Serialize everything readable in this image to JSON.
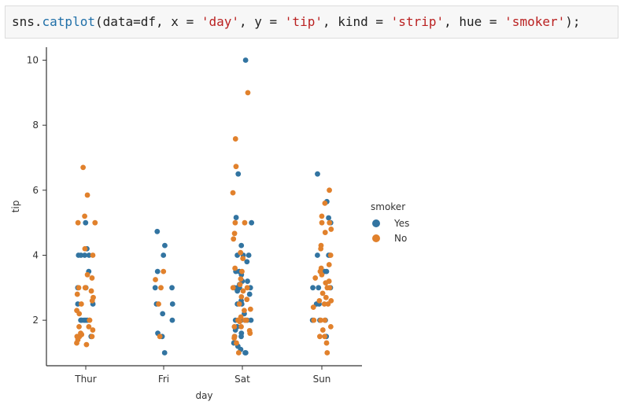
{
  "code_cell": {
    "prefix": "sns.",
    "function": "catplot",
    "open": "(data=df, x = ",
    "x_arg": "'day'",
    "sep1": ", y = ",
    "y_arg": "'tip'",
    "sep2": ", kind = ",
    "kind_arg": "'strip'",
    "sep3": ", hue = ",
    "hue_arg": "'smoker'",
    "close": ");"
  },
  "colors": {
    "Yes": "#3274a1",
    "No": "#e1812c",
    "axis": "#333333",
    "text": "#333333"
  },
  "chart_data": {
    "type": "scatter",
    "subtype": "strip",
    "xlabel": "day",
    "ylabel": "tip",
    "categories": [
      "Thur",
      "Fri",
      "Sat",
      "Sun"
    ],
    "ylim": [
      0.6,
      10.4
    ],
    "yticks": [
      2,
      4,
      6,
      8,
      10
    ],
    "grid": false,
    "legend": {
      "title": "smoker",
      "placement": "right",
      "entries": [
        "Yes",
        "No"
      ]
    },
    "series": [
      {
        "name": "Yes",
        "values": {
          "Thur": [
            5.0,
            4.2,
            4.0,
            4.0,
            4.0,
            3.0,
            2.5,
            2.5,
            2.0,
            2.0,
            2.0,
            1.5,
            3.5,
            3.0,
            2.0,
            2.0,
            4.0
          ],
          "Fri": [
            4.73,
            4.3,
            4.0,
            3.5,
            3.0,
            3.0,
            2.5,
            2.5,
            2.2,
            2.0,
            1.6,
            1.5,
            1.0
          ],
          "Sat": [
            10.0,
            6.5,
            5.16,
            5.0,
            4.3,
            4.0,
            4.0,
            3.5,
            3.5,
            3.2,
            3.1,
            3.0,
            3.0,
            3.0,
            3.0,
            2.8,
            2.5,
            2.5,
            2.2,
            2.0,
            2.0,
            2.0,
            2.0,
            1.8,
            1.6,
            1.5,
            1.3,
            1.1,
            1.0,
            1.0,
            2.0,
            3.0,
            1.5,
            3.2,
            2.6,
            4.0,
            3.4,
            2.0,
            1.2,
            2.9,
            3.8,
            1.7
          ],
          "Sun": [
            6.5,
            5.65,
            5.15,
            5.0,
            4.0,
            4.0,
            3.5,
            3.5,
            3.5,
            3.0,
            3.0,
            2.5,
            2.5,
            2.0,
            2.0,
            1.5,
            4.0,
            3.0,
            2.0
          ]
        }
      },
      {
        "name": "No",
        "values": {
          "Thur": [
            6.7,
            5.85,
            5.2,
            5.0,
            5.0,
            4.2,
            4.0,
            3.4,
            3.0,
            3.0,
            2.9,
            2.7,
            2.5,
            2.3,
            2.2,
            2.0,
            2.0,
            1.8,
            1.7,
            1.6,
            1.5,
            1.5,
            1.5,
            1.4,
            1.3,
            1.25,
            3.3,
            2.6,
            1.8,
            3.0,
            2.8,
            1.56
          ],
          "Fri": [
            3.5,
            3.25,
            3.0,
            2.5,
            1.5
          ],
          "Sat": [
            9.0,
            7.58,
            6.73,
            5.92,
            5.0,
            4.67,
            4.08,
            3.6,
            3.5,
            3.27,
            3.0,
            3.0,
            2.72,
            2.64,
            2.5,
            2.34,
            2.0,
            2.0,
            2.0,
            1.96,
            1.8,
            1.68,
            1.5,
            1.45,
            1.3,
            1.0,
            4.5,
            2.3,
            1.8,
            3.1,
            2.9,
            1.6,
            3.9,
            2.1,
            5.0
          ],
          "Sun": [
            6.0,
            5.6,
            5.2,
            5.0,
            4.7,
            4.3,
            4.0,
            3.71,
            3.5,
            3.4,
            3.15,
            3.0,
            3.0,
            2.83,
            2.6,
            2.5,
            2.5,
            2.0,
            2.0,
            1.8,
            1.7,
            1.5,
            1.5,
            1.3,
            1.0,
            5.0,
            4.2,
            3.2,
            2.7,
            2.4,
            2.6,
            3.6,
            4.8,
            2.0,
            3.3
          ]
        }
      }
    ]
  }
}
